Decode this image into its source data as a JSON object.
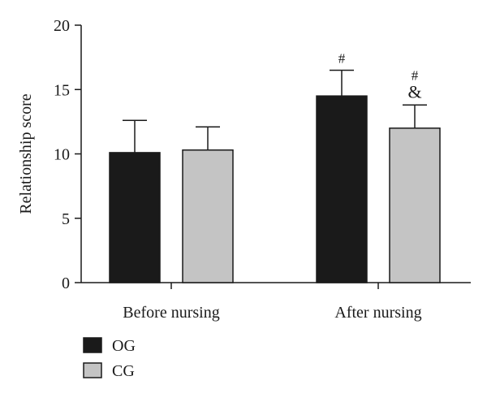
{
  "chart_data": {
    "type": "bar",
    "title": "",
    "xlabel": "",
    "ylabel": "Relationship score",
    "ylim": [
      0,
      20
    ],
    "yticks": [
      "0",
      "5",
      "10",
      "15",
      "20"
    ],
    "categories": [
      "Before nursing",
      "After nursing"
    ],
    "series": [
      {
        "name": "OG",
        "values": [
          10.1,
          14.5
        ],
        "errors": [
          2.5,
          2.0
        ],
        "color": "#1a1a1a"
      },
      {
        "name": "CG",
        "values": [
          10.3,
          12.0
        ],
        "errors": [
          1.8,
          1.8
        ],
        "color": "#c4c4c4"
      }
    ],
    "annotations": [
      {
        "series": 0,
        "category": 1,
        "lines": [
          "#"
        ]
      },
      {
        "series": 1,
        "category": 1,
        "lines": [
          "#",
          "&"
        ]
      }
    ],
    "legend_placement": "bottom-left",
    "grid": false
  }
}
